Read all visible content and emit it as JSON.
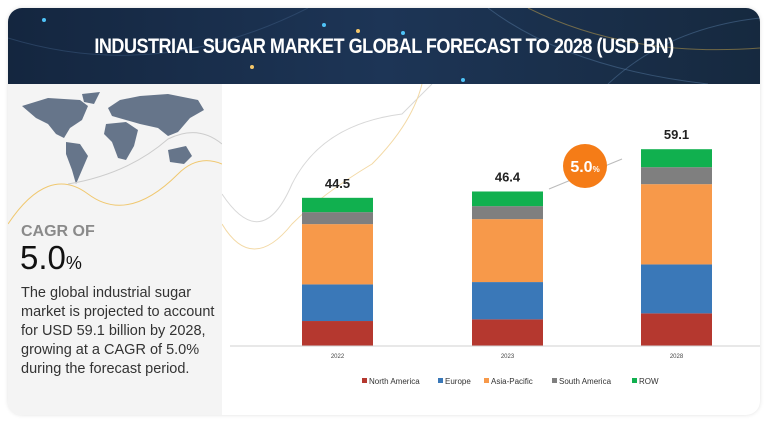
{
  "header": {
    "title": "INDUSTRIAL SUGAR MARKET GLOBAL FORECAST TO 2028 (USD BN)"
  },
  "summary": {
    "cagr_label": "CAGR OF",
    "cagr_value": "5.0",
    "cagr_unit": "%",
    "description": "The global industrial sugar market is projected to account for USD 59.1 billion by 2028, growing at a CAGR of 5.0% during the forecast period."
  },
  "chart_data": {
    "type": "bar",
    "stacked": true,
    "categories": [
      "2022",
      "2023",
      "2028"
    ],
    "totals": [
      "44.5",
      "46.4",
      "59.1"
    ],
    "series": [
      {
        "name": "North America",
        "color": "#b5382f",
        "values": [
          7.5,
          8.0,
          9.8
        ]
      },
      {
        "name": "Europe",
        "color": "#3a78b8",
        "values": [
          11.0,
          11.2,
          14.7
        ]
      },
      {
        "name": "Asia-Pacific",
        "color": "#f7994a",
        "values": [
          18.1,
          18.9,
          24.1
        ]
      },
      {
        "name": "South America",
        "color": "#7f7f7f",
        "values": [
          3.6,
          3.9,
          5.1
        ]
      },
      {
        "name": "ROW",
        "color": "#11b04f",
        "values": [
          4.3,
          4.4,
          5.4
        ]
      }
    ],
    "cagr_badge": {
      "text": "5.0",
      "unit": "%",
      "color": "#f57c17"
    },
    "legend_position": "bottom",
    "grid": false
  }
}
